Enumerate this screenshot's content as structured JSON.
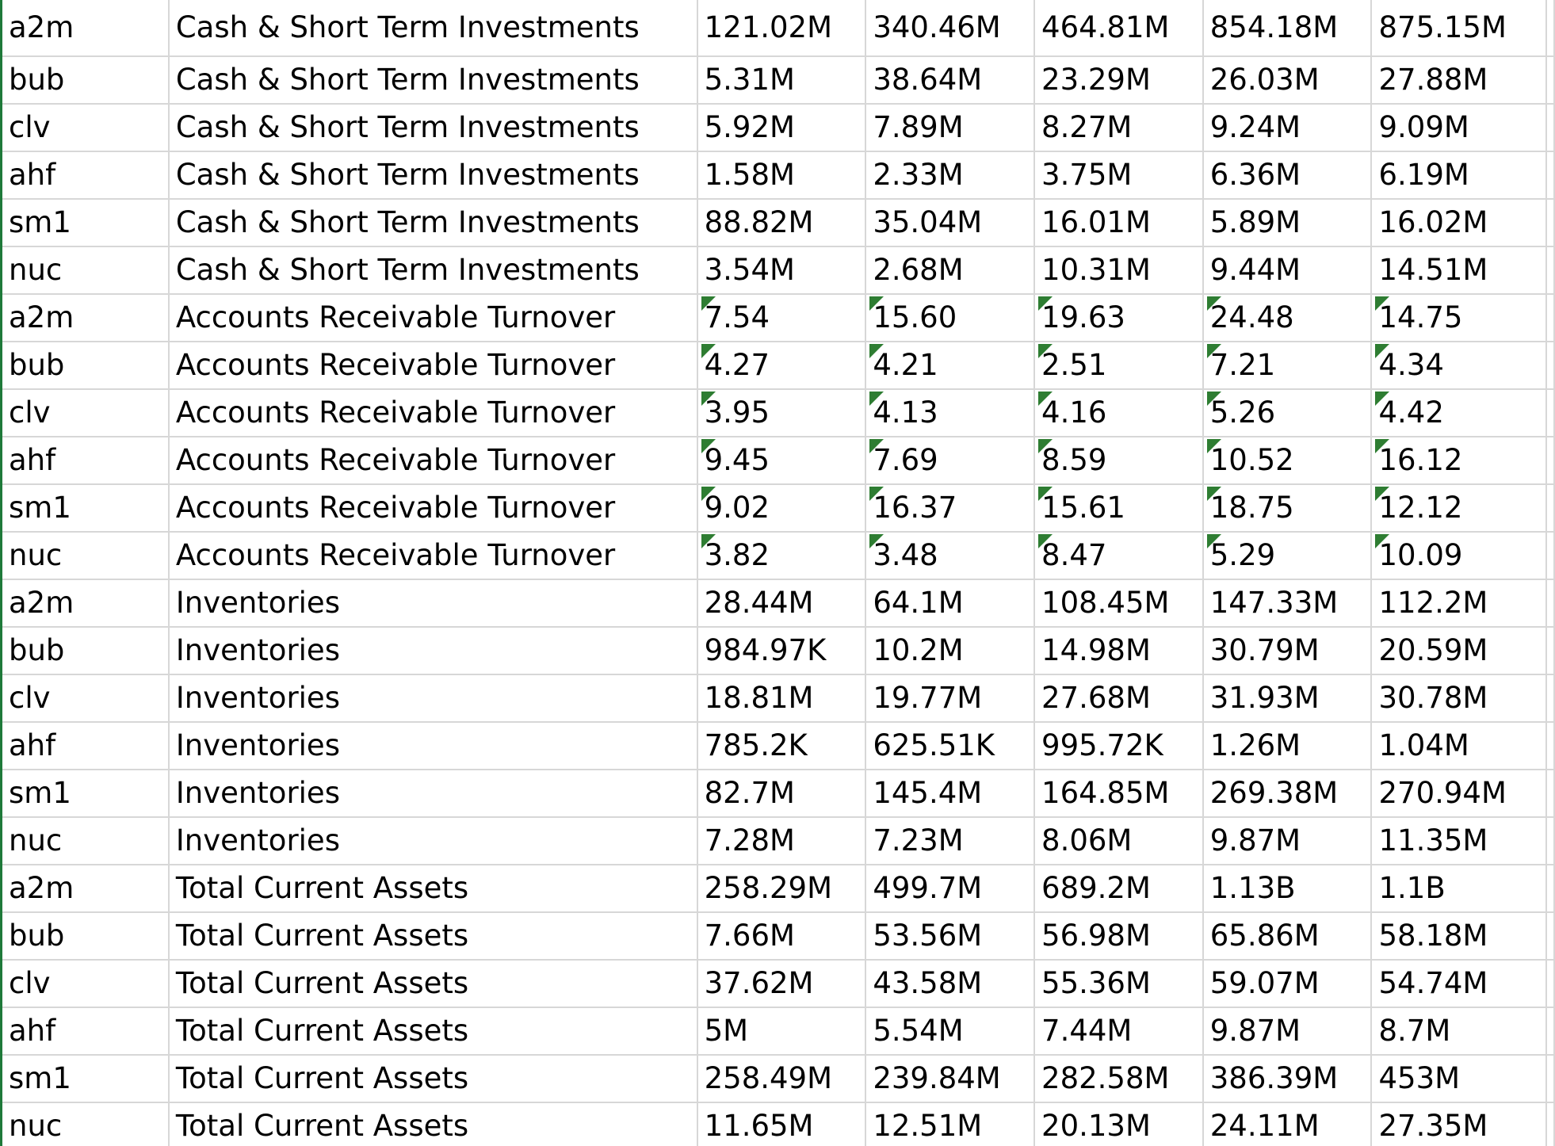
{
  "sheet": {
    "rows": [
      {
        "ticker": "a2m",
        "metric": "Cash & Short Term Investments",
        "values": [
          "121.02M",
          "340.46M",
          "464.81M",
          "854.18M",
          "875.15M"
        ]
      },
      {
        "ticker": "bub",
        "metric": "Cash & Short Term Investments",
        "values": [
          "5.31M",
          "38.64M",
          "23.29M",
          "26.03M",
          "27.88M"
        ]
      },
      {
        "ticker": "clv",
        "metric": "Cash & Short Term Investments",
        "values": [
          "5.92M",
          "7.89M",
          "8.27M",
          "9.24M",
          "9.09M"
        ]
      },
      {
        "ticker": "ahf",
        "metric": "Cash & Short Term Investments",
        "values": [
          "1.58M",
          "2.33M",
          "3.75M",
          "6.36M",
          "6.19M"
        ]
      },
      {
        "ticker": "sm1",
        "metric": "Cash & Short Term Investments",
        "values": [
          "88.82M",
          "35.04M",
          "16.01M",
          "5.89M",
          "16.02M"
        ]
      },
      {
        "ticker": "nuc",
        "metric": "Cash & Short Term Investments",
        "values": [
          "3.54M",
          "2.68M",
          "10.31M",
          "9.44M",
          "14.51M"
        ]
      },
      {
        "ticker": "a2m",
        "metric": "Accounts Receivable Turnover",
        "values": [
          "7.54",
          "15.60",
          "19.63",
          "24.48",
          "14.75"
        ],
        "flagged": true
      },
      {
        "ticker": "bub",
        "metric": "Accounts Receivable Turnover",
        "values": [
          "4.27",
          "4.21",
          "2.51",
          "7.21",
          "4.34"
        ],
        "flagged": true
      },
      {
        "ticker": "clv",
        "metric": "Accounts Receivable Turnover",
        "values": [
          "3.95",
          "4.13",
          "4.16",
          "5.26",
          "4.42"
        ],
        "flagged": true
      },
      {
        "ticker": "ahf",
        "metric": "Accounts Receivable Turnover",
        "values": [
          "9.45",
          "7.69",
          "8.59",
          "10.52",
          "16.12"
        ],
        "flagged": true
      },
      {
        "ticker": "sm1",
        "metric": "Accounts Receivable Turnover",
        "values": [
          "9.02",
          "16.37",
          "15.61",
          "18.75",
          "12.12"
        ],
        "flagged": true
      },
      {
        "ticker": "nuc",
        "metric": "Accounts Receivable Turnover",
        "values": [
          "3.82",
          "3.48",
          "8.47",
          "5.29",
          "10.09"
        ],
        "flagged": true
      },
      {
        "ticker": "a2m",
        "metric": "Inventories",
        "values": [
          "28.44M",
          "64.1M",
          "108.45M",
          "147.33M",
          "112.2M"
        ]
      },
      {
        "ticker": "bub",
        "metric": "Inventories",
        "values": [
          "984.97K",
          "10.2M",
          "14.98M",
          "30.79M",
          "20.59M"
        ]
      },
      {
        "ticker": "clv",
        "metric": "Inventories",
        "values": [
          "18.81M",
          "19.77M",
          "27.68M",
          "31.93M",
          "30.78M"
        ]
      },
      {
        "ticker": "ahf",
        "metric": "Inventories",
        "values": [
          "785.2K",
          "625.51K",
          "995.72K",
          "1.26M",
          "1.04M"
        ]
      },
      {
        "ticker": "sm1",
        "metric": "Inventories",
        "values": [
          "82.7M",
          "145.4M",
          "164.85M",
          "269.38M",
          "270.94M"
        ]
      },
      {
        "ticker": "nuc",
        "metric": "Inventories",
        "values": [
          "7.28M",
          "7.23M",
          "8.06M",
          "9.87M",
          "11.35M"
        ]
      },
      {
        "ticker": "a2m",
        "metric": "Total Current Assets",
        "values": [
          "258.29M",
          "499.7M",
          "689.2M",
          "1.13B",
          "1.1B"
        ]
      },
      {
        "ticker": "bub",
        "metric": "Total Current Assets",
        "values": [
          "7.66M",
          "53.56M",
          "56.98M",
          "65.86M",
          "58.18M"
        ]
      },
      {
        "ticker": "clv",
        "metric": "Total Current Assets",
        "values": [
          "37.62M",
          "43.58M",
          "55.36M",
          "59.07M",
          "54.74M"
        ]
      },
      {
        "ticker": "ahf",
        "metric": "Total Current Assets",
        "values": [
          "5M",
          "5.54M",
          "7.44M",
          "9.87M",
          "8.7M"
        ]
      },
      {
        "ticker": "sm1",
        "metric": "Total Current Assets",
        "values": [
          "258.49M",
          "239.84M",
          "282.58M",
          "386.39M",
          "453M"
        ]
      },
      {
        "ticker": "nuc",
        "metric": "Total Current Assets",
        "values": [
          "11.65M",
          "12.51M",
          "20.13M",
          "24.11M",
          "27.35M"
        ]
      }
    ],
    "flag_color": "#2e7d32",
    "gridline_color": "#d7d7d7"
  }
}
